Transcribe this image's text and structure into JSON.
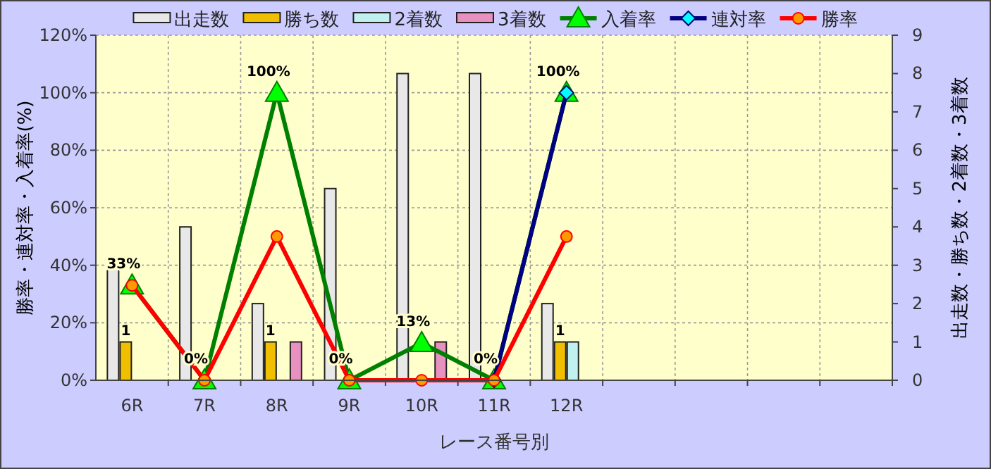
{
  "chart_data": {
    "type": "bar",
    "categories": [
      "6R",
      "7R",
      "8R",
      "9R",
      "10R",
      "11R",
      "12R",
      null,
      null,
      null,
      null
    ],
    "xlabel": "レース番号別",
    "ylabel": "勝率・連対率・入着率(%)",
    "y2label": "出走数・勝ち数・2着数・3着数",
    "ylim": [
      0,
      120
    ],
    "yticks": [
      {
        "value": 0,
        "label": "0%"
      },
      {
        "value": 20,
        "label": "20%"
      },
      {
        "value": 40,
        "label": "40%"
      },
      {
        "value": 60,
        "label": "60%"
      },
      {
        "value": 80,
        "label": "80%"
      },
      {
        "value": 100,
        "label": "100%"
      },
      {
        "value": 120,
        "label": "120%"
      }
    ],
    "y2lim": [
      0,
      9
    ],
    "y2ticks": [
      0,
      1,
      2,
      3,
      4,
      5,
      6,
      7,
      8,
      9
    ],
    "grid": true,
    "legend": "top",
    "series": [
      {
        "name": "出走数",
        "axis": "y2",
        "color": "#e8e8e8",
        "values": [
          3,
          4,
          2,
          5,
          8,
          8,
          2,
          null,
          null,
          null,
          null
        ]
      },
      {
        "name": "勝ち数",
        "axis": "y2",
        "color": "#f0c000",
        "values": [
          1,
          0,
          1,
          0,
          0,
          0,
          1,
          null,
          null,
          null,
          null
        ],
        "value_labels": [
          "1",
          null,
          "1",
          null,
          null,
          null,
          "1",
          null,
          null,
          null,
          null
        ]
      },
      {
        "name": "2着数",
        "axis": "y2",
        "color": "#c0f0f0",
        "values": [
          0,
          0,
          0,
          0,
          0,
          0,
          1,
          null,
          null,
          null,
          null
        ]
      },
      {
        "name": "3着数",
        "axis": "y2",
        "color": "#e890c0",
        "values": [
          0,
          0,
          1,
          0,
          1,
          0,
          0,
          null,
          null,
          null,
          null
        ]
      },
      {
        "name": "入着率",
        "type": "line",
        "axis": "y",
        "color": "#008000",
        "marker": "triangle",
        "values": [
          33,
          0,
          100,
          0,
          13,
          0,
          100,
          null,
          null,
          null,
          null
        ],
        "value_labels": [
          "33%",
          "0%",
          "100%",
          "0%",
          "13%",
          "0%",
          "100%",
          null,
          null,
          null,
          null
        ]
      },
      {
        "name": "連対率",
        "type": "line",
        "axis": "y",
        "color": "#000080",
        "marker": "diamond",
        "values": [
          null,
          null,
          null,
          null,
          null,
          0,
          100,
          null,
          null,
          null,
          null
        ]
      },
      {
        "name": "勝率",
        "type": "line",
        "axis": "y",
        "color": "#ff0000",
        "marker": "circle",
        "values": [
          33,
          0,
          50,
          0,
          0,
          0,
          50,
          null,
          null,
          null,
          null
        ]
      }
    ]
  }
}
